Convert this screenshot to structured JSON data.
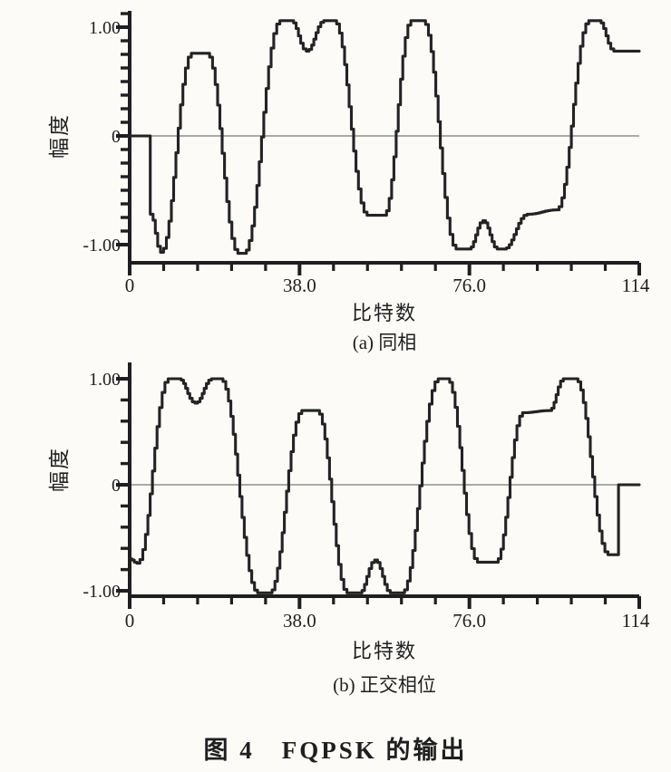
{
  "figure": {
    "caption": "图 4　FQPSK 的输出"
  },
  "colors": {
    "ink": "#1f1f1f",
    "curve": "#232323",
    "zero_line": "#8f8f8f",
    "background": "#fcfbf7"
  },
  "chart_data": [
    {
      "id": "a",
      "type": "line",
      "subcaption": "(a) 同相",
      "xlabel": "比特数",
      "ylabel": "幅度",
      "xlim": [
        0,
        114
      ],
      "ylim": [
        -1.1,
        1.25
      ],
      "grid": false,
      "zero_line": true,
      "x_ticks": {
        "min": 0,
        "max": 114,
        "minor_step": 7.6,
        "majors": [
          0,
          38,
          76,
          114
        ]
      },
      "y_ticks": {
        "min": -1,
        "max": 1.125,
        "minor_step": 0.125,
        "majors": [
          -1,
          0,
          1
        ]
      },
      "x_tick_labels": [
        {
          "v": 0,
          "label": "0"
        },
        {
          "v": 38,
          "label": "38.0"
        },
        {
          "v": 76,
          "label": "76.0"
        },
        {
          "v": 114,
          "label": "114"
        }
      ],
      "y_tick_labels": [
        {
          "v": 1,
          "label": "1.00"
        },
        {
          "v": 0,
          "label": "0"
        },
        {
          "v": -1,
          "label": "-1.00"
        }
      ],
      "series": [
        {
          "name": "in-phase-output",
          "points": [
            [
              0,
              0
            ],
            [
              4.2,
              0
            ],
            [
              4.6,
              -0.72
            ],
            [
              6.9,
              -1.07
            ],
            [
              13.8,
              0.76
            ],
            [
              17.2,
              0.76
            ],
            [
              24.2,
              -1.08
            ],
            [
              25.4,
              -1.08
            ],
            [
              33.6,
              1.06
            ],
            [
              36,
              1.06
            ],
            [
              39.5,
              0.78
            ],
            [
              43.4,
              1.06
            ],
            [
              45.6,
              1.06
            ],
            [
              53.1,
              -0.73
            ],
            [
              56.8,
              -0.73
            ],
            [
              62.9,
              1.06
            ],
            [
              65.5,
              1.06
            ],
            [
              73,
              -1.04
            ],
            [
              75.8,
              -1.04
            ],
            [
              79,
              -0.78
            ],
            [
              82.2,
              -1.04
            ],
            [
              83.6,
              -1.04
            ],
            [
              88.9,
              -0.72
            ],
            [
              95.4,
              -0.68
            ],
            [
              102.7,
              1.06
            ],
            [
              104.8,
              1.06
            ],
            [
              108.3,
              0.78
            ],
            [
              114,
              0.78
            ]
          ]
        }
      ]
    },
    {
      "id": "b",
      "type": "line",
      "subcaption": "(b) 正交相位",
      "xlabel": "比特数",
      "ylabel": "幅度",
      "xlim": [
        0,
        114
      ],
      "ylim": [
        -1.1,
        1.1
      ],
      "grid": false,
      "zero_line": true,
      "x_ticks": {
        "min": 0,
        "max": 114,
        "minor_step": 7.6,
        "majors": [
          0,
          38,
          76,
          114
        ]
      },
      "y_ticks": {
        "min": -1,
        "max": 1,
        "minor_step": 0.2,
        "majors": [
          -1,
          0,
          1
        ]
      },
      "x_tick_labels": [
        {
          "v": 0,
          "label": "0"
        },
        {
          "v": 38,
          "label": "38.0"
        },
        {
          "v": 76,
          "label": "76.0"
        },
        {
          "v": 114,
          "label": "114"
        }
      ],
      "y_tick_labels": [
        {
          "v": 1,
          "label": "1.00"
        },
        {
          "v": 0,
          "label": "0"
        },
        {
          "v": -1,
          "label": "-1.00"
        }
      ],
      "series": [
        {
          "name": "quadrature-output",
          "points": [
            [
              0,
              -0.7
            ],
            [
              1.6,
              -0.74
            ],
            [
              8.6,
              1
            ],
            [
              10.9,
              1
            ],
            [
              14.6,
              0.77
            ],
            [
              18.3,
              1
            ],
            [
              20.2,
              1
            ],
            [
              28.6,
              -1.02
            ],
            [
              31.2,
              -1.02
            ],
            [
              38.5,
              0.7
            ],
            [
              41.8,
              0.7
            ],
            [
              48.6,
              -1.02
            ],
            [
              51.3,
              -1.02
            ],
            [
              54.8,
              -0.71
            ],
            [
              58.3,
              -1.02
            ],
            [
              60.8,
              -1.02
            ],
            [
              69,
              1
            ],
            [
              70.9,
              1
            ],
            [
              77.8,
              -0.73
            ],
            [
              81.8,
              -0.73
            ],
            [
              87.9,
              0.68
            ],
            [
              93.8,
              0.7
            ],
            [
              97,
              1
            ],
            [
              99.6,
              1
            ],
            [
              107,
              -0.66
            ],
            [
              109.2,
              -0.66
            ],
            [
              109.35,
              0
            ],
            [
              114,
              0
            ]
          ]
        }
      ]
    }
  ]
}
